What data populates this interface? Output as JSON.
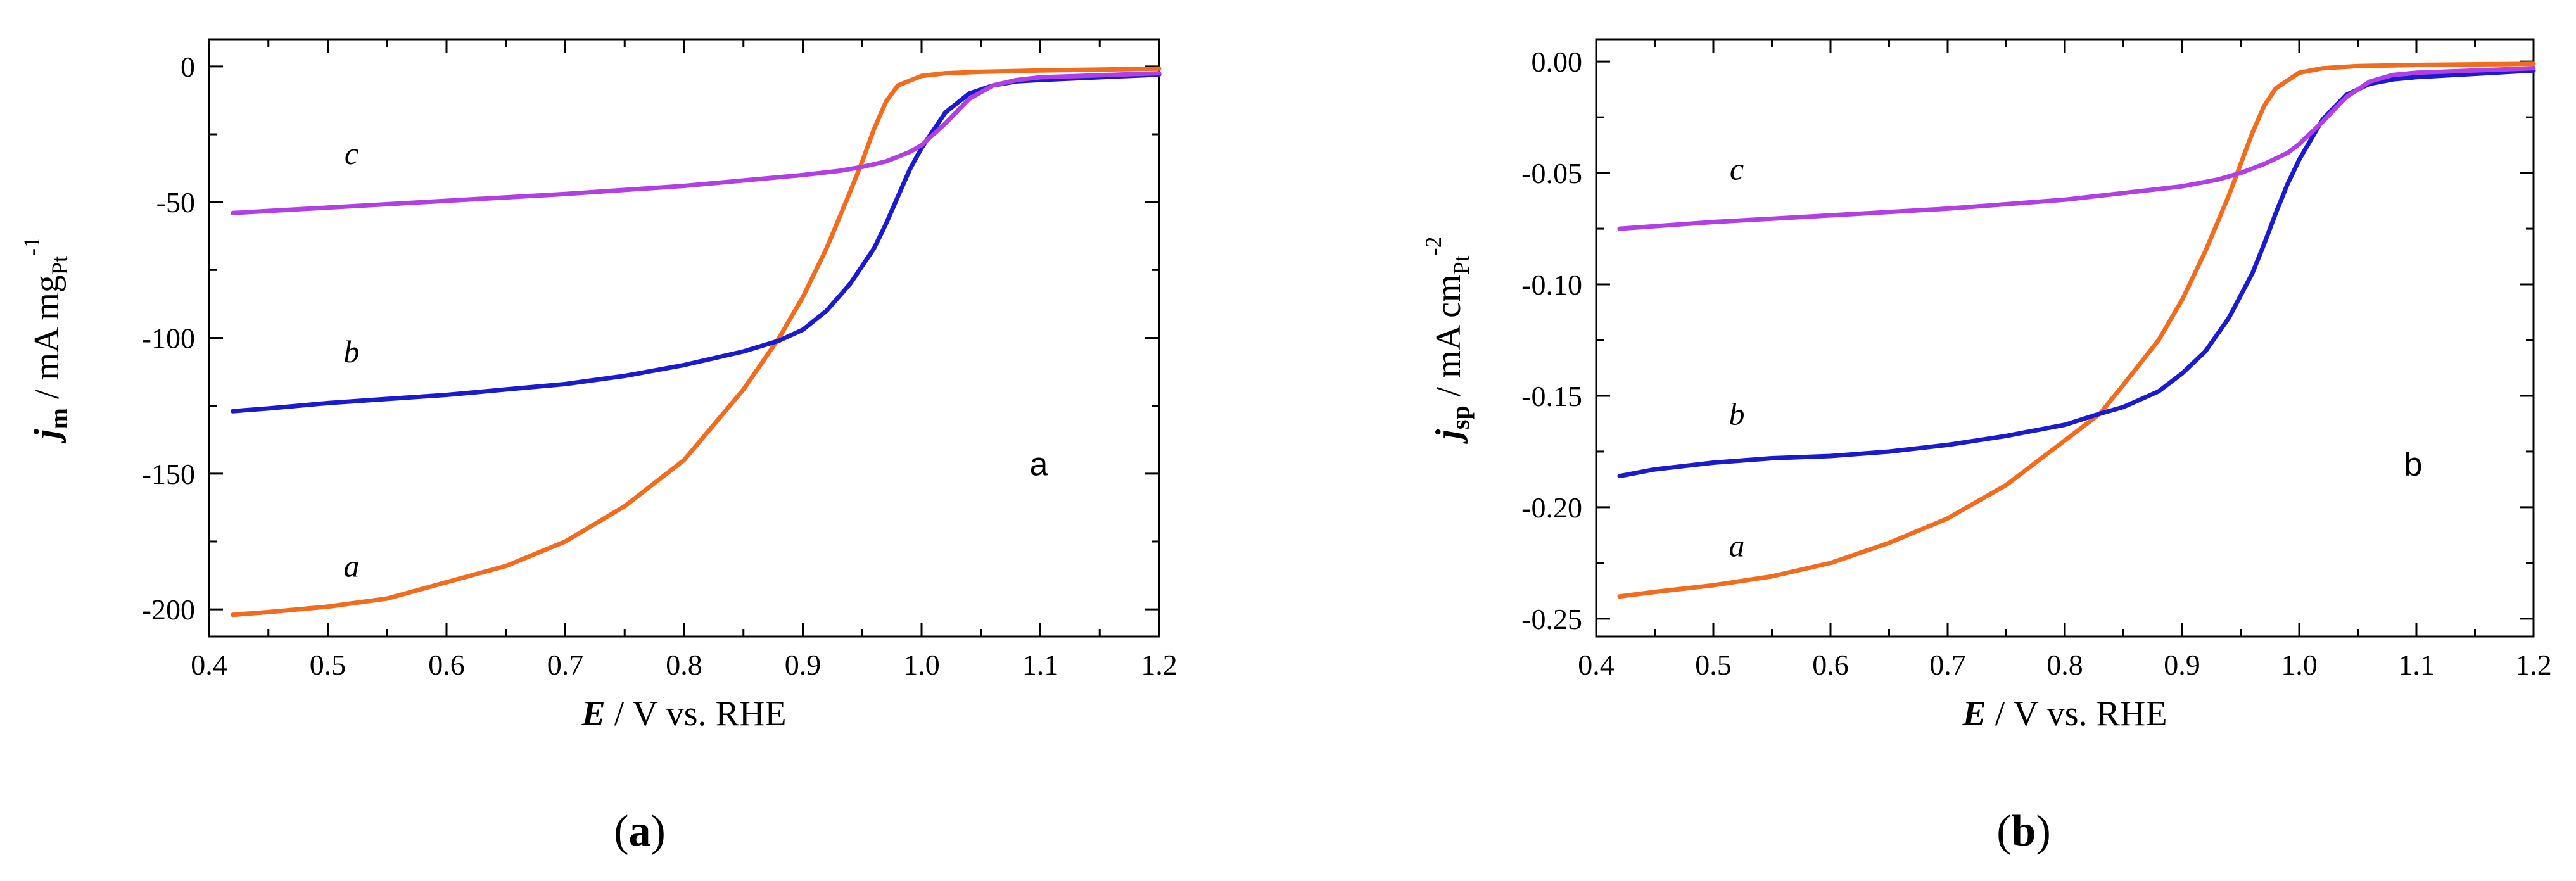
{
  "colors": {
    "a": "#f36b1c",
    "b": "#1a1ad1",
    "c": "#b23ee6",
    "axis": "#000000"
  },
  "chart_data": [
    {
      "type": "line",
      "panel": "a",
      "caption": "a",
      "panel_label": "a",
      "xlabel": {
        "symbol": "E",
        "text": " / V vs. RHE"
      },
      "ylabel": {
        "symbol": "j",
        "subscript": "m",
        "text": " / mA mg",
        "unit_sub": "Pt",
        "unit_sup": "-1"
      },
      "xlim": [
        0.4,
        1.2
      ],
      "ylim": [
        -210,
        10
      ],
      "xticks": [
        0.4,
        0.5,
        0.6,
        0.7,
        0.8,
        0.9,
        1.0,
        1.1,
        1.2
      ],
      "xtick_labels": [
        "0.4",
        "0.5",
        "0.6",
        "0.7",
        "0.8",
        "0.9",
        "1.0",
        "1.1",
        "1.2"
      ],
      "yticks": [
        0,
        -50,
        -100,
        -150,
        -200
      ],
      "ytick_labels": [
        "0",
        "-50",
        "-100",
        "-150",
        "-200"
      ],
      "grid": false,
      "series": [
        {
          "name": "a",
          "label": "a",
          "label_at": [
            0.52,
            -188
          ],
          "x": [
            0.42,
            0.45,
            0.5,
            0.55,
            0.6,
            0.65,
            0.7,
            0.75,
            0.8,
            0.85,
            0.88,
            0.9,
            0.92,
            0.94,
            0.95,
            0.96,
            0.97,
            0.98,
            1.0,
            1.02,
            1.05,
            1.1,
            1.2
          ],
          "y": [
            -202,
            -201,
            -199,
            -196,
            -190,
            -184,
            -175,
            -162,
            -145,
            -119,
            -100,
            -85,
            -67,
            -46,
            -35,
            -23,
            -13,
            -7,
            -3.5,
            -2.5,
            -2,
            -1.5,
            -0.8
          ]
        },
        {
          "name": "b",
          "label": "b",
          "label_at": [
            0.52,
            -109
          ],
          "x": [
            0.42,
            0.45,
            0.5,
            0.55,
            0.6,
            0.65,
            0.7,
            0.75,
            0.8,
            0.85,
            0.88,
            0.9,
            0.92,
            0.94,
            0.96,
            0.97,
            0.98,
            0.99,
            1.0,
            1.02,
            1.04,
            1.06,
            1.08,
            1.1,
            1.2
          ],
          "y": [
            -127,
            -126,
            -124,
            -122.5,
            -121,
            -119,
            -117,
            -114,
            -110,
            -105,
            -101,
            -97,
            -90,
            -80,
            -67,
            -58,
            -48,
            -38,
            -30,
            -17,
            -10,
            -7,
            -5.5,
            -5,
            -3
          ]
        },
        {
          "name": "c",
          "label": "c",
          "label_at": [
            0.52,
            -36
          ],
          "x": [
            0.42,
            0.5,
            0.6,
            0.7,
            0.8,
            0.85,
            0.9,
            0.93,
            0.95,
            0.97,
            0.99,
            1.0,
            1.02,
            1.04,
            1.06,
            1.08,
            1.1,
            1.2
          ],
          "y": [
            -54,
            -52,
            -49.5,
            -47,
            -44,
            -42,
            -40,
            -38.5,
            -37,
            -35,
            -31.5,
            -29,
            -21,
            -12,
            -7,
            -5,
            -4,
            -2.5
          ]
        }
      ]
    },
    {
      "type": "line",
      "panel": "b",
      "caption": "b",
      "panel_label": "b",
      "xlabel": {
        "symbol": "E",
        "text": " / V vs. RHE"
      },
      "ylabel": {
        "symbol": "j",
        "subscript": "sp",
        "text": " / mA cm",
        "unit_sub": "Pt",
        "unit_sup": "-2"
      },
      "xlim": [
        0.4,
        1.2
      ],
      "ylim": [
        -0.258,
        0.01
      ],
      "xticks": [
        0.4,
        0.5,
        0.6,
        0.7,
        0.8,
        0.9,
        1.0,
        1.1,
        1.2
      ],
      "xtick_labels": [
        "0.4",
        "0.5",
        "0.6",
        "0.7",
        "0.8",
        "0.9",
        "1.0",
        "1.1",
        "1.2"
      ],
      "yticks": [
        0.0,
        -0.05,
        -0.1,
        -0.15,
        -0.2,
        -0.25
      ],
      "ytick_labels": [
        "0.00",
        "-0.05",
        "-0.10",
        "-0.15",
        "-0.20",
        "-0.25"
      ],
      "grid": false,
      "series": [
        {
          "name": "a",
          "label": "a",
          "label_at": [
            0.52,
            -0.222
          ],
          "x": [
            0.42,
            0.45,
            0.5,
            0.55,
            0.6,
            0.65,
            0.7,
            0.75,
            0.8,
            0.83,
            0.85,
            0.88,
            0.9,
            0.92,
            0.94,
            0.95,
            0.96,
            0.97,
            0.98,
            1.0,
            1.02,
            1.05,
            1.1,
            1.2
          ],
          "y": [
            -0.24,
            -0.238,
            -0.235,
            -0.231,
            -0.225,
            -0.216,
            -0.205,
            -0.19,
            -0.17,
            -0.158,
            -0.145,
            -0.125,
            -0.107,
            -0.085,
            -0.06,
            -0.046,
            -0.032,
            -0.02,
            -0.012,
            -0.005,
            -0.003,
            -0.002,
            -0.0015,
            -0.001
          ]
        },
        {
          "name": "b",
          "label": "b",
          "label_at": [
            0.52,
            -0.163
          ],
          "x": [
            0.42,
            0.45,
            0.5,
            0.55,
            0.6,
            0.65,
            0.7,
            0.75,
            0.8,
            0.83,
            0.85,
            0.88,
            0.9,
            0.92,
            0.94,
            0.96,
            0.97,
            0.98,
            0.99,
            1.0,
            1.02,
            1.04,
            1.06,
            1.08,
            1.1,
            1.2
          ],
          "y": [
            -0.186,
            -0.183,
            -0.18,
            -0.178,
            -0.177,
            -0.175,
            -0.172,
            -0.168,
            -0.163,
            -0.158,
            -0.155,
            -0.148,
            -0.14,
            -0.13,
            -0.115,
            -0.095,
            -0.082,
            -0.068,
            -0.055,
            -0.044,
            -0.026,
            -0.015,
            -0.01,
            -0.008,
            -0.007,
            -0.004
          ]
        },
        {
          "name": "c",
          "label": "c",
          "label_at": [
            0.52,
            -0.053
          ],
          "x": [
            0.42,
            0.5,
            0.6,
            0.7,
            0.8,
            0.85,
            0.9,
            0.93,
            0.95,
            0.97,
            0.99,
            1.0,
            1.02,
            1.04,
            1.06,
            1.08,
            1.1,
            1.2
          ],
          "y": [
            -0.075,
            -0.072,
            -0.069,
            -0.066,
            -0.062,
            -0.059,
            -0.056,
            -0.053,
            -0.05,
            -0.046,
            -0.041,
            -0.037,
            -0.027,
            -0.016,
            -0.009,
            -0.006,
            -0.005,
            -0.003
          ]
        }
      ]
    }
  ]
}
